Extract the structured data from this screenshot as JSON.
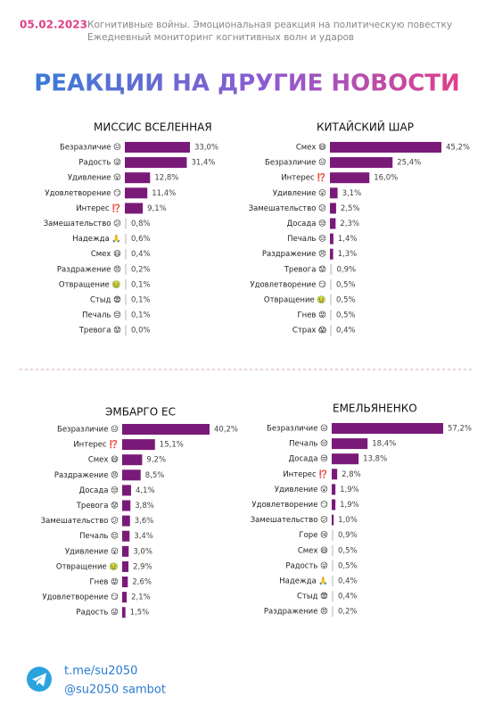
{
  "header": {
    "date": "05.02.2023",
    "line1": "Когнитивные войны. Эмоциональная реакция на политическую повестку",
    "line2": "Ежедневный мониторинг когнитивных волн и ударов",
    "title": "РЕАКЦИИ НА ДРУГИЕ НОВОСТИ"
  },
  "chart_data": [
    {
      "type": "barh",
      "title": "МИССИС ВСЕЛЕННАЯ",
      "categories": [
        "Безразличие 😐",
        "Радость 😜",
        "Удивление 😮",
        "Удовлетворение 😏",
        "Интерес ⁉️",
        "Замешательство 😕",
        "Надежда 🙏",
        "Смех 😄",
        "Раздражение 😠",
        "Отвращение 🤢",
        "Стыд 😨",
        "Печаль 😔",
        "Тревога 😟"
      ],
      "values": [
        33.0,
        31.4,
        12.8,
        11.4,
        9.1,
        0.8,
        0.6,
        0.4,
        0.2,
        0.1,
        0.1,
        0.1,
        0.0
      ],
      "value_labels": [
        "33,0%",
        "31,4%",
        "12,8%",
        "11,4%",
        "9,1%",
        "0,8%",
        "0,6%",
        "0,4%",
        "0,2%",
        "0,1%",
        "0,1%",
        "0,1%",
        "0,0%"
      ],
      "colors": [
        "#7a1a78",
        "#7a1a78",
        "#7a1a78",
        "#7a1a78",
        "#7a1a78",
        "#d9d9d9",
        "#d9d9d9",
        "#d9d9d9",
        "#d9d9d9",
        "#d9d9d9",
        "#d9d9d9",
        "#d9d9d9",
        "#d9d9d9"
      ]
    },
    {
      "type": "barh",
      "title": "КИТАЙСКИЙ ШАР",
      "categories": [
        "Смех 😄",
        "Безразличие 😐",
        "Интерес ⁉️",
        "Удивление 😮",
        "Замешательство 😕",
        "Досада 😒",
        "Печаль 😔",
        "Раздражение 😠",
        "Тревога 😟",
        "Удовлетворение 😏",
        "Отвращение 🤢",
        "Гнев 😡",
        "Страх 😱"
      ],
      "values": [
        45.2,
        25.4,
        16.0,
        3.1,
        2.5,
        2.3,
        1.4,
        1.3,
        0.9,
        0.5,
        0.5,
        0.5,
        0.4
      ],
      "value_labels": [
        "45,2%",
        "25,4%",
        "16,0%",
        "3,1%",
        "2,5%",
        "2,3%",
        "1,4%",
        "1,3%",
        "0,9%",
        "0,5%",
        "0,5%",
        "0,5%",
        "0,4%"
      ],
      "colors": [
        "#7a1a78",
        "#7a1a78",
        "#7a1a78",
        "#7a1a78",
        "#7a1a78",
        "#7a1a78",
        "#7a1a78",
        "#7a1a78",
        "#d9d9d9",
        "#d9d9d9",
        "#d9d9d9",
        "#d9d9d9",
        "#d9d9d9"
      ]
    },
    {
      "type": "barh",
      "title": "ЭМБАРГО ЕС",
      "categories": [
        "Безразличие 😐",
        "Интерес ⁉️",
        "Смех 😄",
        "Раздражение 😠",
        "Досада 😒",
        "Тревога 😟",
        "Замешательство 😕",
        "Печаль 😔",
        "Удивление 😮",
        "Отвращение 🤢",
        "Гнев 😡",
        "Удовлетворение 😏",
        "Радость 😜"
      ],
      "values": [
        40.2,
        15.1,
        9.2,
        8.5,
        4.1,
        3.8,
        3.6,
        3.4,
        3.0,
        2.9,
        2.6,
        2.1,
        1.5
      ],
      "value_labels": [
        "40,2%",
        "15,1%",
        "9,2%",
        "8,5%",
        "4,1%",
        "3,8%",
        "3,6%",
        "3,4%",
        "3,0%",
        "2,9%",
        "2,6%",
        "2,1%",
        "1,5%"
      ],
      "colors": [
        "#7a1a78",
        "#7a1a78",
        "#7a1a78",
        "#7a1a78",
        "#7a1a78",
        "#7a1a78",
        "#7a1a78",
        "#7a1a78",
        "#7a1a78",
        "#7a1a78",
        "#7a1a78",
        "#7a1a78",
        "#7a1a78"
      ]
    },
    {
      "type": "barh",
      "title": "ЕМЕЛЬЯНЕНКО",
      "categories": [
        "Безразличие 😐",
        "Печаль 😔",
        "Досада 😒",
        "Интерес ⁉️",
        "Удивление 😮",
        "Удовлетворение 😏",
        "Замешательство 😕",
        "Горе 😢",
        "Смех 😄",
        "Радость 😜",
        "Надежда 🙏",
        "Стыд 😨",
        "Раздражение 😠"
      ],
      "values": [
        57.2,
        18.4,
        13.8,
        2.8,
        1.9,
        1.9,
        1.0,
        0.9,
        0.5,
        0.5,
        0.4,
        0.4,
        0.2
      ],
      "value_labels": [
        "57,2%",
        "18,4%",
        "13,8%",
        "2,8%",
        "1,9%",
        "1,9%",
        "1,0%",
        "0,9%",
        "0,5%",
        "0,5%",
        "0,4%",
        "0,4%",
        "0,2%"
      ],
      "colors": [
        "#7a1a78",
        "#7a1a78",
        "#7a1a78",
        "#7a1a78",
        "#7a1a78",
        "#7a1a78",
        "#7a1a78",
        "#d9d9d9",
        "#d9d9d9",
        "#d9d9d9",
        "#d9d9d9",
        "#d9d9d9",
        "#d9d9d9"
      ]
    }
  ],
  "footer": {
    "link": "t.me/su2050",
    "bot": "@su2050 sambot"
  }
}
